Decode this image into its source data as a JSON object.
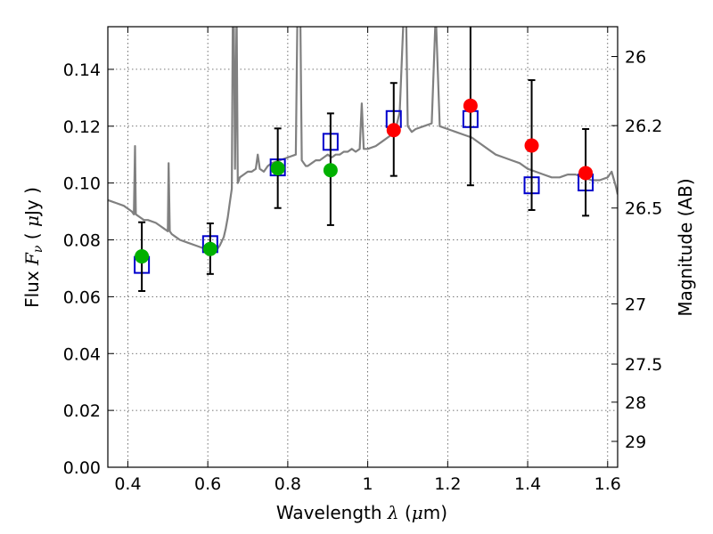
{
  "chart_data": {
    "type": "scatter",
    "xlabel": "Wavelength  λ (μm)",
    "ylabel": "Flux  F_ν  ( μJy )",
    "ylabel_parts": {
      "pre": "Flux  ",
      "sym": "F",
      "sub": "ν",
      "post": "  ( ",
      "mu": "μ",
      "unit": "Jy )"
    },
    "xlabel_parts": {
      "pre": "Wavelength  ",
      "sym": "λ",
      "open": " (",
      "mu": "μ",
      "unit": "m)"
    },
    "y2label": "Magnitude (AB)",
    "xlim": [
      0.35,
      1.625
    ],
    "ylim": [
      0.0,
      0.155
    ],
    "grid": true,
    "xticks": [
      0.4,
      0.6,
      0.8,
      1.0,
      1.2,
      1.4,
      1.6
    ],
    "xtick_labels": [
      "0.4",
      "0.6",
      "0.8",
      "1",
      "1.2",
      "1.4",
      "1.6"
    ],
    "yticks": [
      0.0,
      0.02,
      0.04,
      0.06,
      0.08,
      0.1,
      0.12,
      0.14
    ],
    "ytick_labels": [
      "0.00",
      "0.02",
      "0.04",
      "0.06",
      "0.08",
      "0.10",
      "0.12",
      "0.14"
    ],
    "y2ticks": [
      {
        "label": "26",
        "flux": 0.1445
      },
      {
        "label": "26.2",
        "flux": 0.1202
      },
      {
        "label": "26.5",
        "flux": 0.0912
      },
      {
        "label": "27",
        "flux": 0.0575
      },
      {
        "label": "27.5",
        "flux": 0.0363
      },
      {
        "label": "28",
        "flux": 0.0229
      },
      {
        "label": "29",
        "flux": 0.0091
      }
    ],
    "series": [
      {
        "kind": "observed",
        "color": "#00b000",
        "points": [
          {
            "x": 0.435,
            "y": 0.0742,
            "ylo": 0.062,
            "yhi": 0.0862
          },
          {
            "x": 0.606,
            "y": 0.0768,
            "ylo": 0.068,
            "yhi": 0.0858
          },
          {
            "x": 0.775,
            "y": 0.1052,
            "ylo": 0.0912,
            "yhi": 0.1192
          },
          {
            "x": 0.907,
            "y": 0.1045,
            "ylo": 0.0852,
            "yhi": 0.1245
          }
        ]
      },
      {
        "kind": "observed",
        "color": "#ff0000",
        "points": [
          {
            "x": 1.065,
            "y": 0.1186,
            "ylo": 0.1025,
            "yhi": 0.1352
          },
          {
            "x": 1.257,
            "y": 0.1272,
            "ylo": 0.0992,
            "yhi": 0.1552
          },
          {
            "x": 1.41,
            "y": 0.1132,
            "ylo": 0.0905,
            "yhi": 0.1362
          },
          {
            "x": 1.545,
            "y": 0.1035,
            "ylo": 0.0885,
            "yhi": 0.119
          }
        ]
      },
      {
        "kind": "model_photometry",
        "color": "#0000cc",
        "points": [
          {
            "x": 0.435,
            "y": 0.0712
          },
          {
            "x": 0.606,
            "y": 0.0785
          },
          {
            "x": 0.775,
            "y": 0.1055
          },
          {
            "x": 0.907,
            "y": 0.1145
          },
          {
            "x": 1.065,
            "y": 0.1225
          },
          {
            "x": 1.257,
            "y": 0.1225
          },
          {
            "x": 1.41,
            "y": 0.0992
          },
          {
            "x": 1.545,
            "y": 0.1002
          }
        ]
      },
      {
        "kind": "model_spectrum",
        "color": "#808080",
        "x": [
          0.35,
          0.37,
          0.39,
          0.4,
          0.41,
          0.415,
          0.418,
          0.42,
          0.43,
          0.44,
          0.45,
          0.47,
          0.48,
          0.49,
          0.5,
          0.502,
          0.505,
          0.51,
          0.52,
          0.53,
          0.55,
          0.57,
          0.59,
          0.6,
          0.62,
          0.63,
          0.64,
          0.645,
          0.65,
          0.655,
          0.66,
          0.663,
          0.665,
          0.668,
          0.672,
          0.675,
          0.678,
          0.68,
          0.69,
          0.7,
          0.71,
          0.72,
          0.725,
          0.73,
          0.74,
          0.75,
          0.76,
          0.78,
          0.8,
          0.82,
          0.825,
          0.83,
          0.835,
          0.84,
          0.845,
          0.85,
          0.86,
          0.87,
          0.88,
          0.89,
          0.9,
          0.91,
          0.92,
          0.93,
          0.94,
          0.95,
          0.96,
          0.97,
          0.98,
          0.985,
          0.99,
          1.0,
          1.02,
          1.04,
          1.05,
          1.06,
          1.07,
          1.08,
          1.09,
          1.095,
          1.1,
          1.11,
          1.12,
          1.14,
          1.16,
          1.17,
          1.18,
          1.2,
          1.22,
          1.24,
          1.26,
          1.28,
          1.3,
          1.32,
          1.34,
          1.36,
          1.38,
          1.4,
          1.42,
          1.44,
          1.46,
          1.48,
          1.5,
          1.52,
          1.54,
          1.56,
          1.58,
          1.6,
          1.61,
          1.62,
          1.625
        ],
        "y": [
          0.094,
          0.093,
          0.092,
          0.091,
          0.09,
          0.089,
          0.113,
          0.089,
          0.088,
          0.087,
          0.087,
          0.086,
          0.085,
          0.084,
          0.083,
          0.107,
          0.083,
          0.082,
          0.081,
          0.08,
          0.079,
          0.078,
          0.077,
          0.076,
          0.076,
          0.078,
          0.081,
          0.084,
          0.088,
          0.093,
          0.098,
          0.17,
          0.16,
          0.105,
          0.16,
          0.1,
          0.101,
          0.102,
          0.103,
          0.104,
          0.104,
          0.105,
          0.11,
          0.105,
          0.104,
          0.106,
          0.107,
          0.108,
          0.109,
          0.11,
          0.17,
          0.18,
          0.108,
          0.107,
          0.106,
          0.106,
          0.107,
          0.108,
          0.108,
          0.109,
          0.11,
          0.109,
          0.11,
          0.11,
          0.111,
          0.111,
          0.112,
          0.111,
          0.112,
          0.128,
          0.112,
          0.112,
          0.113,
          0.115,
          0.116,
          0.117,
          0.119,
          0.125,
          0.16,
          0.17,
          0.12,
          0.118,
          0.119,
          0.12,
          0.121,
          0.16,
          0.12,
          0.119,
          0.118,
          0.117,
          0.116,
          0.114,
          0.112,
          0.11,
          0.109,
          0.108,
          0.107,
          0.105,
          0.104,
          0.103,
          0.102,
          0.102,
          0.103,
          0.103,
          0.102,
          0.101,
          0.101,
          0.102,
          0.104,
          0.099,
          0.096
        ]
      }
    ]
  }
}
